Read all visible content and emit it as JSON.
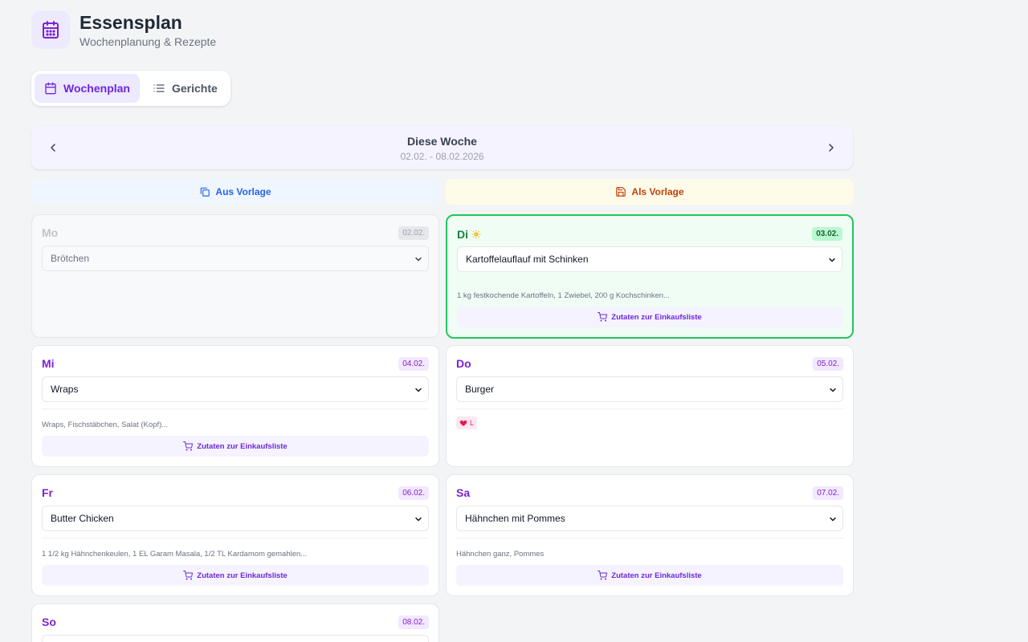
{
  "app": {
    "title": "Essensplan",
    "subtitle": "Wochenplanung & Rezepte",
    "icon": "calendar-icon"
  },
  "tabs": [
    {
      "label": "Wochenplan",
      "icon": "calendar-icon",
      "active": true
    },
    {
      "label": "Gerichte",
      "icon": "list-icon",
      "active": false
    }
  ],
  "week": {
    "title": "Diese Woche",
    "range": "02.02. - 08.02.2026"
  },
  "templates": {
    "load_label": "Aus Vorlage",
    "save_label": "Als Vorlage"
  },
  "shop_label": "Zutaten zur Einkaufsliste",
  "days": [
    {
      "name": "Mo",
      "date": "02.02.",
      "meal": "Brötchen",
      "state": "past"
    },
    {
      "name": "Di",
      "date": "03.02.",
      "meal": "Kartoffelauflauf mit Schinken",
      "state": "today",
      "ingredients": "1 kg festkochende Kartoffeln, 1 Zwiebel, 200 g Kochschinken..."
    },
    {
      "name": "Mi",
      "date": "04.02.",
      "meal": "Wraps",
      "ingredients": "Wraps, Fischstäbchen, Salat (Kopf)..."
    },
    {
      "name": "Do",
      "date": "05.02.",
      "meal": "Burger",
      "tag": "L"
    },
    {
      "name": "Fr",
      "date": "06.02.",
      "meal": "Butter Chicken",
      "ingredients": "1 1/2 kg Hähnchenkeulen, 1 EL Garam Masala, 1/2 TL Kardamom gemahlen..."
    },
    {
      "name": "Sa",
      "date": "07.02.",
      "meal": "Hähnchen mit Pommes",
      "ingredients": "Hähnchen ganz, Pommes"
    },
    {
      "name": "So",
      "date": "08.02.",
      "meal": ""
    }
  ],
  "colors": {
    "accent": "#7e22ce",
    "today": "#22c55e",
    "load": "#2563eb",
    "save": "#c2410c"
  }
}
